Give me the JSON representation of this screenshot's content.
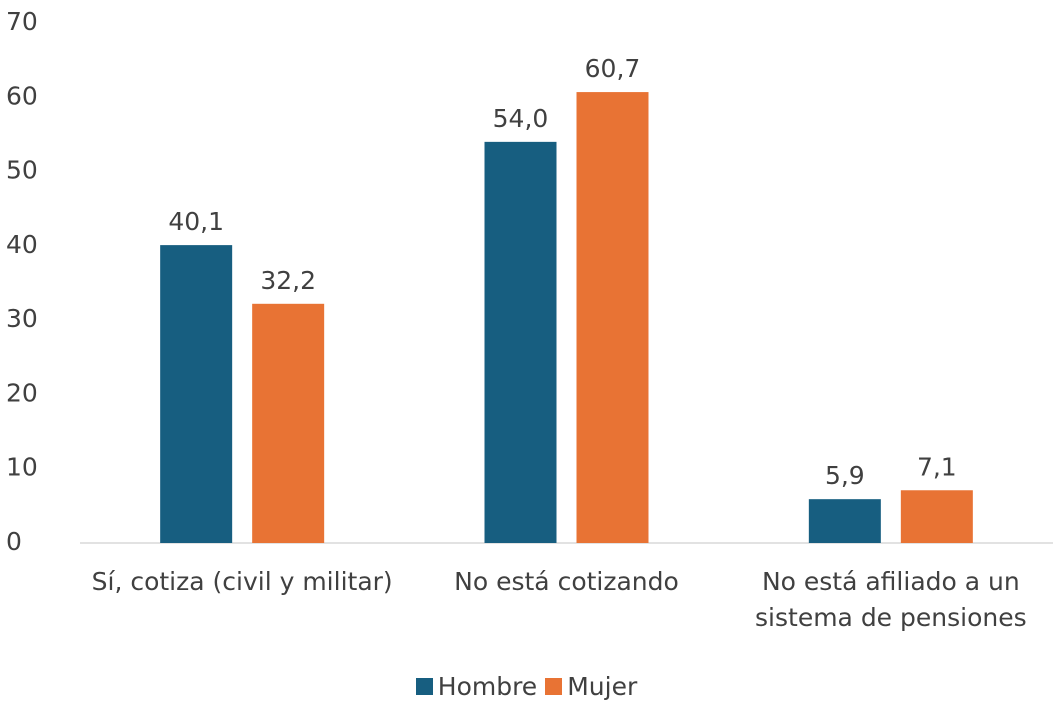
{
  "chart_data": {
    "type": "bar",
    "categories": [
      "Sí, cotiza (civil y militar)",
      "No está cotizando",
      "No está afiliado a un sistema de pensiones"
    ],
    "series": [
      {
        "name": "Hombre",
        "color": "#175e80",
        "values": [
          40.1,
          54.0,
          5.9
        ],
        "value_labels": [
          "40,1",
          "54,0",
          "5,9"
        ]
      },
      {
        "name": "Mujer",
        "color": "#e87334",
        "values": [
          32.2,
          60.7,
          7.1
        ],
        "value_labels": [
          "32,2",
          "60,7",
          "7,1"
        ]
      }
    ],
    "ylim": [
      0,
      70
    ],
    "yticks": [
      0,
      10,
      20,
      30,
      40,
      50,
      60,
      70
    ],
    "grid": false,
    "legend": "bottom"
  }
}
